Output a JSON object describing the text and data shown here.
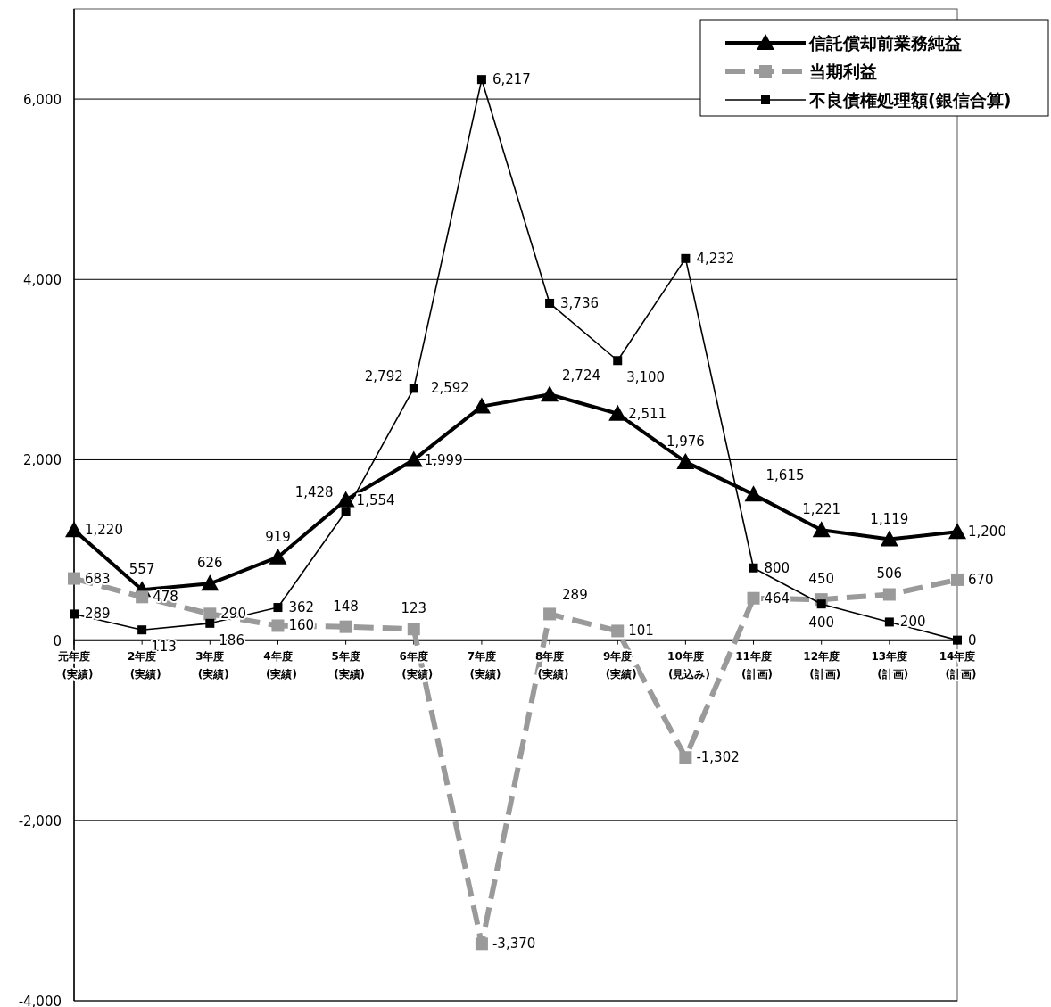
{
  "chart_data": {
    "type": "line",
    "categories": [
      "元年度(実績)",
      "2年度(実績)",
      "3年度(実績)",
      "4年度(実績)",
      "5年度(実績)",
      "6年度(実績)",
      "7年度(実績)",
      "8年度(実績)",
      "9年度(実績)",
      "10年度(見込み)",
      "11年度(計画)",
      "12年度(計画)",
      "13年度(計画)",
      "14年度(計画)"
    ],
    "series": [
      {
        "name": "信託償却前業務純益",
        "color": "#000000",
        "marker": "triangle",
        "line_style": "solid",
        "values": [
          1220,
          557,
          626,
          919,
          1554,
          1999,
          2592,
          2724,
          2511,
          1976,
          1615,
          1221,
          1119,
          1200
        ],
        "value_labels": [
          "1,220",
          "557",
          "626",
          "919",
          "1,554",
          "1,999",
          "2,592",
          "2,724",
          "2,511",
          "1,976",
          "1,615",
          "1,221",
          "1,119",
          "1,200"
        ]
      },
      {
        "name": "当期利益",
        "color": "#9a9a9a",
        "marker": "square",
        "line_style": "dashed",
        "values": [
          683,
          478,
          290,
          160,
          148,
          123,
          -3370,
          289,
          101,
          -1302,
          464,
          450,
          506,
          670
        ],
        "value_labels": [
          "683",
          "478",
          "290",
          "160",
          "148",
          "123",
          "-3,370",
          "289",
          "101",
          "-1,302",
          "464",
          "450",
          "506",
          "670"
        ]
      },
      {
        "name": "不良債権処理額(銀信合算)",
        "color": "#000000",
        "marker": "square",
        "line_style": "solid",
        "values": [
          289,
          113,
          186,
          362,
          1428,
          2792,
          6217,
          3736,
          3100,
          4232,
          800,
          400,
          200,
          0
        ],
        "value_labels": [
          "289",
          "113",
          "186",
          "362",
          "1,428",
          "2,792",
          "6,217",
          "3,736",
          "3,100",
          "4,232",
          "800",
          "400",
          "200",
          "0"
        ]
      }
    ],
    "ylim": [
      -4000,
      7000
    ],
    "yticks": [
      {
        "value": -4000,
        "label": "-4,000"
      },
      {
        "value": -2000,
        "label": "-2,000"
      },
      {
        "value": 0,
        "label": "0"
      },
      {
        "value": 2000,
        "label": "2,000"
      },
      {
        "value": 4000,
        "label": "4,000"
      },
      {
        "value": 6000,
        "label": "6,000"
      }
    ],
    "grid": "y",
    "legend": "top right"
  }
}
